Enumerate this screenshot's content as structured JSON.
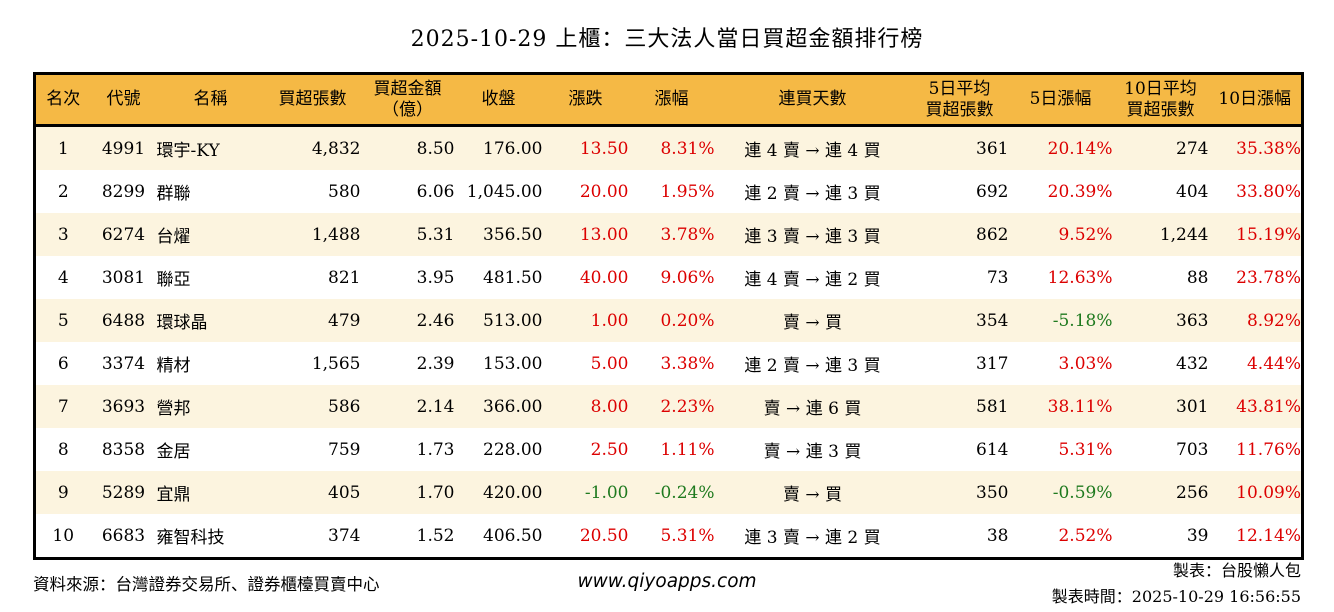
{
  "chart_data": {
    "type": "table",
    "title": "2025-10-29 上櫃：三大法人當日買超金額排行榜",
    "columns": [
      "名次",
      "代號",
      "名稱",
      "買超張數",
      "買超金額（億）",
      "收盤",
      "漲跌",
      "漲幅",
      "連買天數",
      "5日平均買超張數",
      "5日漲幅",
      "10日平均買超張數",
      "10日漲幅"
    ],
    "rows": [
      [
        "1",
        "4991",
        "環宇-KY",
        "4,832",
        "8.50",
        "176.00",
        "13.50",
        "8.31%",
        "連 4 賣 → 連 4 買",
        "361",
        "20.14%",
        "274",
        "35.38%"
      ],
      [
        "2",
        "8299",
        "群聯",
        "580",
        "6.06",
        "1,045.00",
        "20.00",
        "1.95%",
        "連 2 賣 → 連 3 買",
        "692",
        "20.39%",
        "404",
        "33.80%"
      ],
      [
        "3",
        "6274",
        "台燿",
        "1,488",
        "5.31",
        "356.50",
        "13.00",
        "3.78%",
        "連 3 賣 → 連 3 買",
        "862",
        "9.52%",
        "1,244",
        "15.19%"
      ],
      [
        "4",
        "3081",
        "聯亞",
        "821",
        "3.95",
        "481.50",
        "40.00",
        "9.06%",
        "連 4 賣 → 連 2 買",
        "73",
        "12.63%",
        "88",
        "23.78%"
      ],
      [
        "5",
        "6488",
        "環球晶",
        "479",
        "2.46",
        "513.00",
        "1.00",
        "0.20%",
        "賣 → 買",
        "354",
        "-5.18%",
        "363",
        "8.92%"
      ],
      [
        "6",
        "3374",
        "精材",
        "1,565",
        "2.39",
        "153.00",
        "5.00",
        "3.38%",
        "連 2 賣 → 連 3 買",
        "317",
        "3.03%",
        "432",
        "4.44%"
      ],
      [
        "7",
        "3693",
        "營邦",
        "586",
        "2.14",
        "366.00",
        "8.00",
        "2.23%",
        "賣 → 連 6 買",
        "581",
        "38.11%",
        "301",
        "43.81%"
      ],
      [
        "8",
        "8358",
        "金居",
        "759",
        "1.73",
        "228.00",
        "2.50",
        "1.11%",
        "賣 → 連 3 買",
        "614",
        "5.31%",
        "703",
        "11.76%"
      ],
      [
        "9",
        "5289",
        "宜鼎",
        "405",
        "1.70",
        "420.00",
        "-1.00",
        "-0.24%",
        "賣 → 買",
        "350",
        "-0.59%",
        "256",
        "10.09%"
      ],
      [
        "10",
        "6683",
        "雍智科技",
        "374",
        "1.52",
        "406.50",
        "20.50",
        "5.31%",
        "連 3 賣 → 連 2 買",
        "38",
        "2.52%",
        "39",
        "12.14%"
      ]
    ],
    "layout_hints": {
      "striped_rows": "odd rows shaded",
      "colored_columns": [
        "漲跌",
        "漲幅",
        "5日漲幅",
        "10日漲幅"
      ],
      "color_rule": "positive = red, negative = green"
    }
  },
  "table_header_lines": [
    [
      "名次"
    ],
    [
      "代號"
    ],
    [
      "名稱"
    ],
    [
      "買超張數"
    ],
    [
      "買超金額",
      "（億）"
    ],
    [
      "收盤"
    ],
    [
      "漲跌"
    ],
    [
      "漲幅"
    ],
    [
      "連買天數"
    ],
    [
      "5日平均",
      "買超張數"
    ],
    [
      "5日漲幅"
    ],
    [
      "10日平均",
      "買超張數"
    ],
    [
      "10日漲幅"
    ]
  ],
  "footer": {
    "source": "資料來源：台灣證券交易所、證券櫃檯買賣中心",
    "site": "www.qiyoapps.com",
    "maker": "製表：台股懶人包",
    "time": "製表時間：2025-10-29 16:56:55"
  },
  "colors": {
    "header_bg": "#F5B945",
    "row_stripe": "#FCF4DF",
    "positive_red": "#DC0000",
    "negative_green": "#1F7A1F",
    "border": "#000000"
  }
}
